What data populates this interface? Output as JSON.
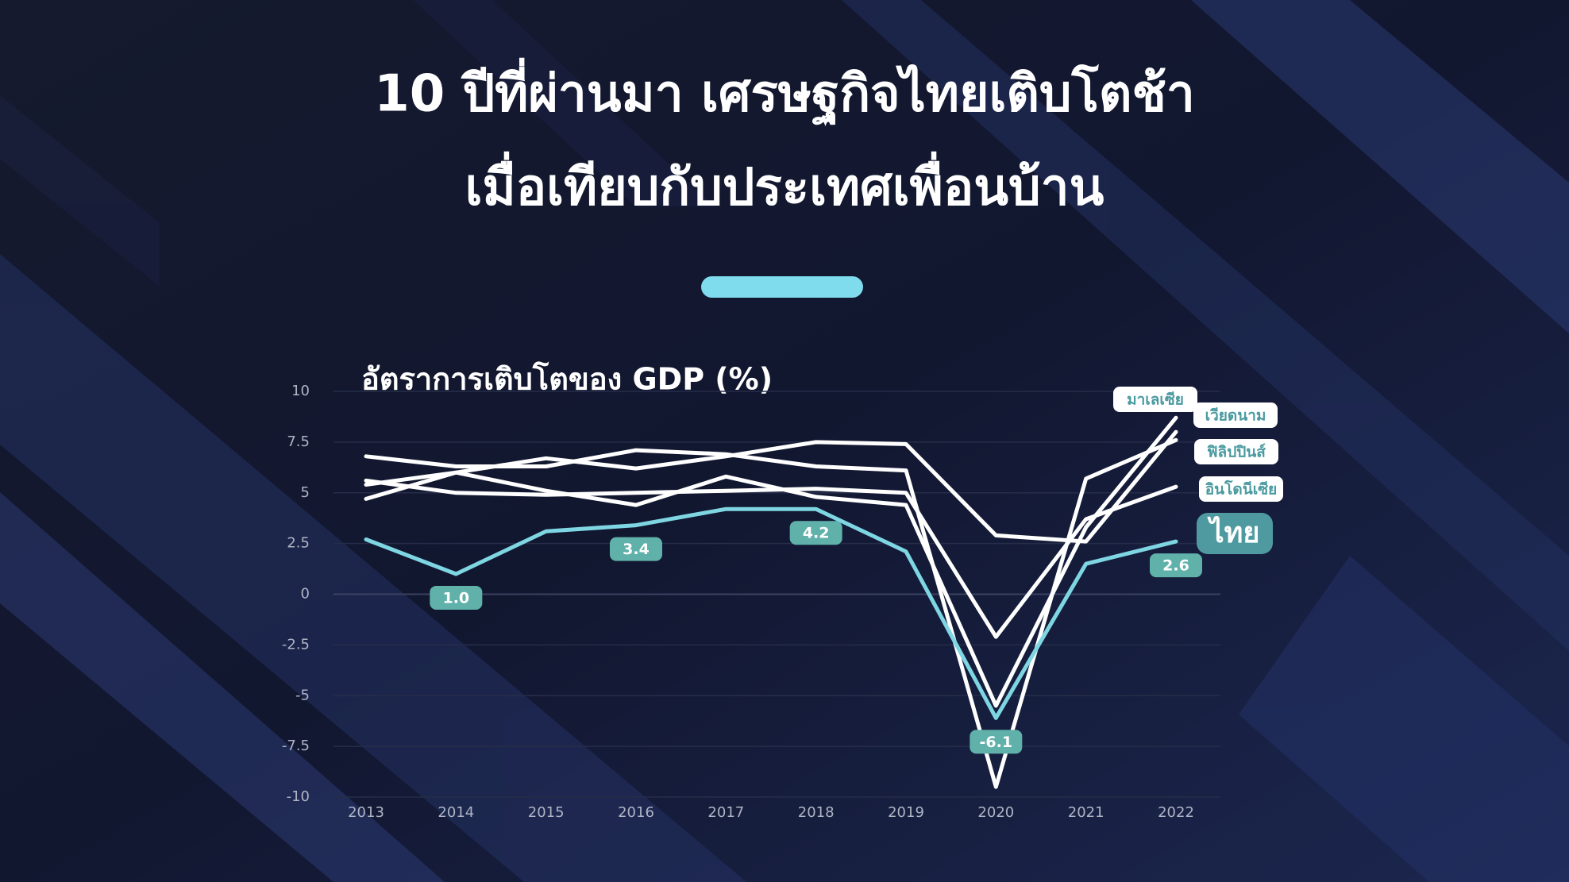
{
  "chart_data": {
    "type": "line",
    "title": "10 ปีที่ผ่านมา เศรษฐกิจไทยเติบโตช้า",
    "subtitle": "เมื่อเทียบกับประเทศเพื่อนบ้าน",
    "y_label": "อัตราการเติบโตของ GDP (%)",
    "categories": [
      "2013",
      "2014",
      "2015",
      "2016",
      "2017",
      "2018",
      "2019",
      "2020",
      "2021",
      "2022"
    ],
    "ylim": [
      -10,
      10
    ],
    "yticks": [
      10,
      7.5,
      5,
      2.5,
      0,
      -2.5,
      -5,
      -7.5,
      -10
    ],
    "grid": true,
    "series": [
      {
        "name": "มาเลเซีย",
        "color": "#ffffff",
        "values": [
          4.7,
          6.0,
          5.1,
          4.4,
          5.8,
          4.8,
          4.4,
          -5.5,
          3.3,
          8.7
        ]
      },
      {
        "name": "เวียดนาม",
        "color": "#ffffff",
        "values": [
          5.4,
          6.0,
          6.7,
          6.2,
          6.8,
          7.5,
          7.4,
          2.9,
          2.6,
          8.0
        ]
      },
      {
        "name": "ฟิลิปปินส์",
        "color": "#ffffff",
        "values": [
          6.8,
          6.3,
          6.3,
          7.1,
          6.9,
          6.3,
          6.1,
          -9.5,
          5.7,
          7.6
        ]
      },
      {
        "name": "อินโดนีเซีย",
        "color": "#ffffff",
        "values": [
          5.6,
          5.0,
          4.9,
          5.0,
          5.1,
          5.2,
          5.0,
          -2.1,
          3.7,
          5.3
        ]
      },
      {
        "name": "ไทย",
        "color": "#7fd6e3",
        "values": [
          2.7,
          1.0,
          3.1,
          3.4,
          4.2,
          4.2,
          2.1,
          -6.1,
          1.5,
          2.6
        ],
        "value_labels": [
          null,
          "1.0",
          null,
          "3.4",
          null,
          "4.2",
          null,
          "-6.1",
          null,
          "2.6"
        ]
      }
    ]
  }
}
